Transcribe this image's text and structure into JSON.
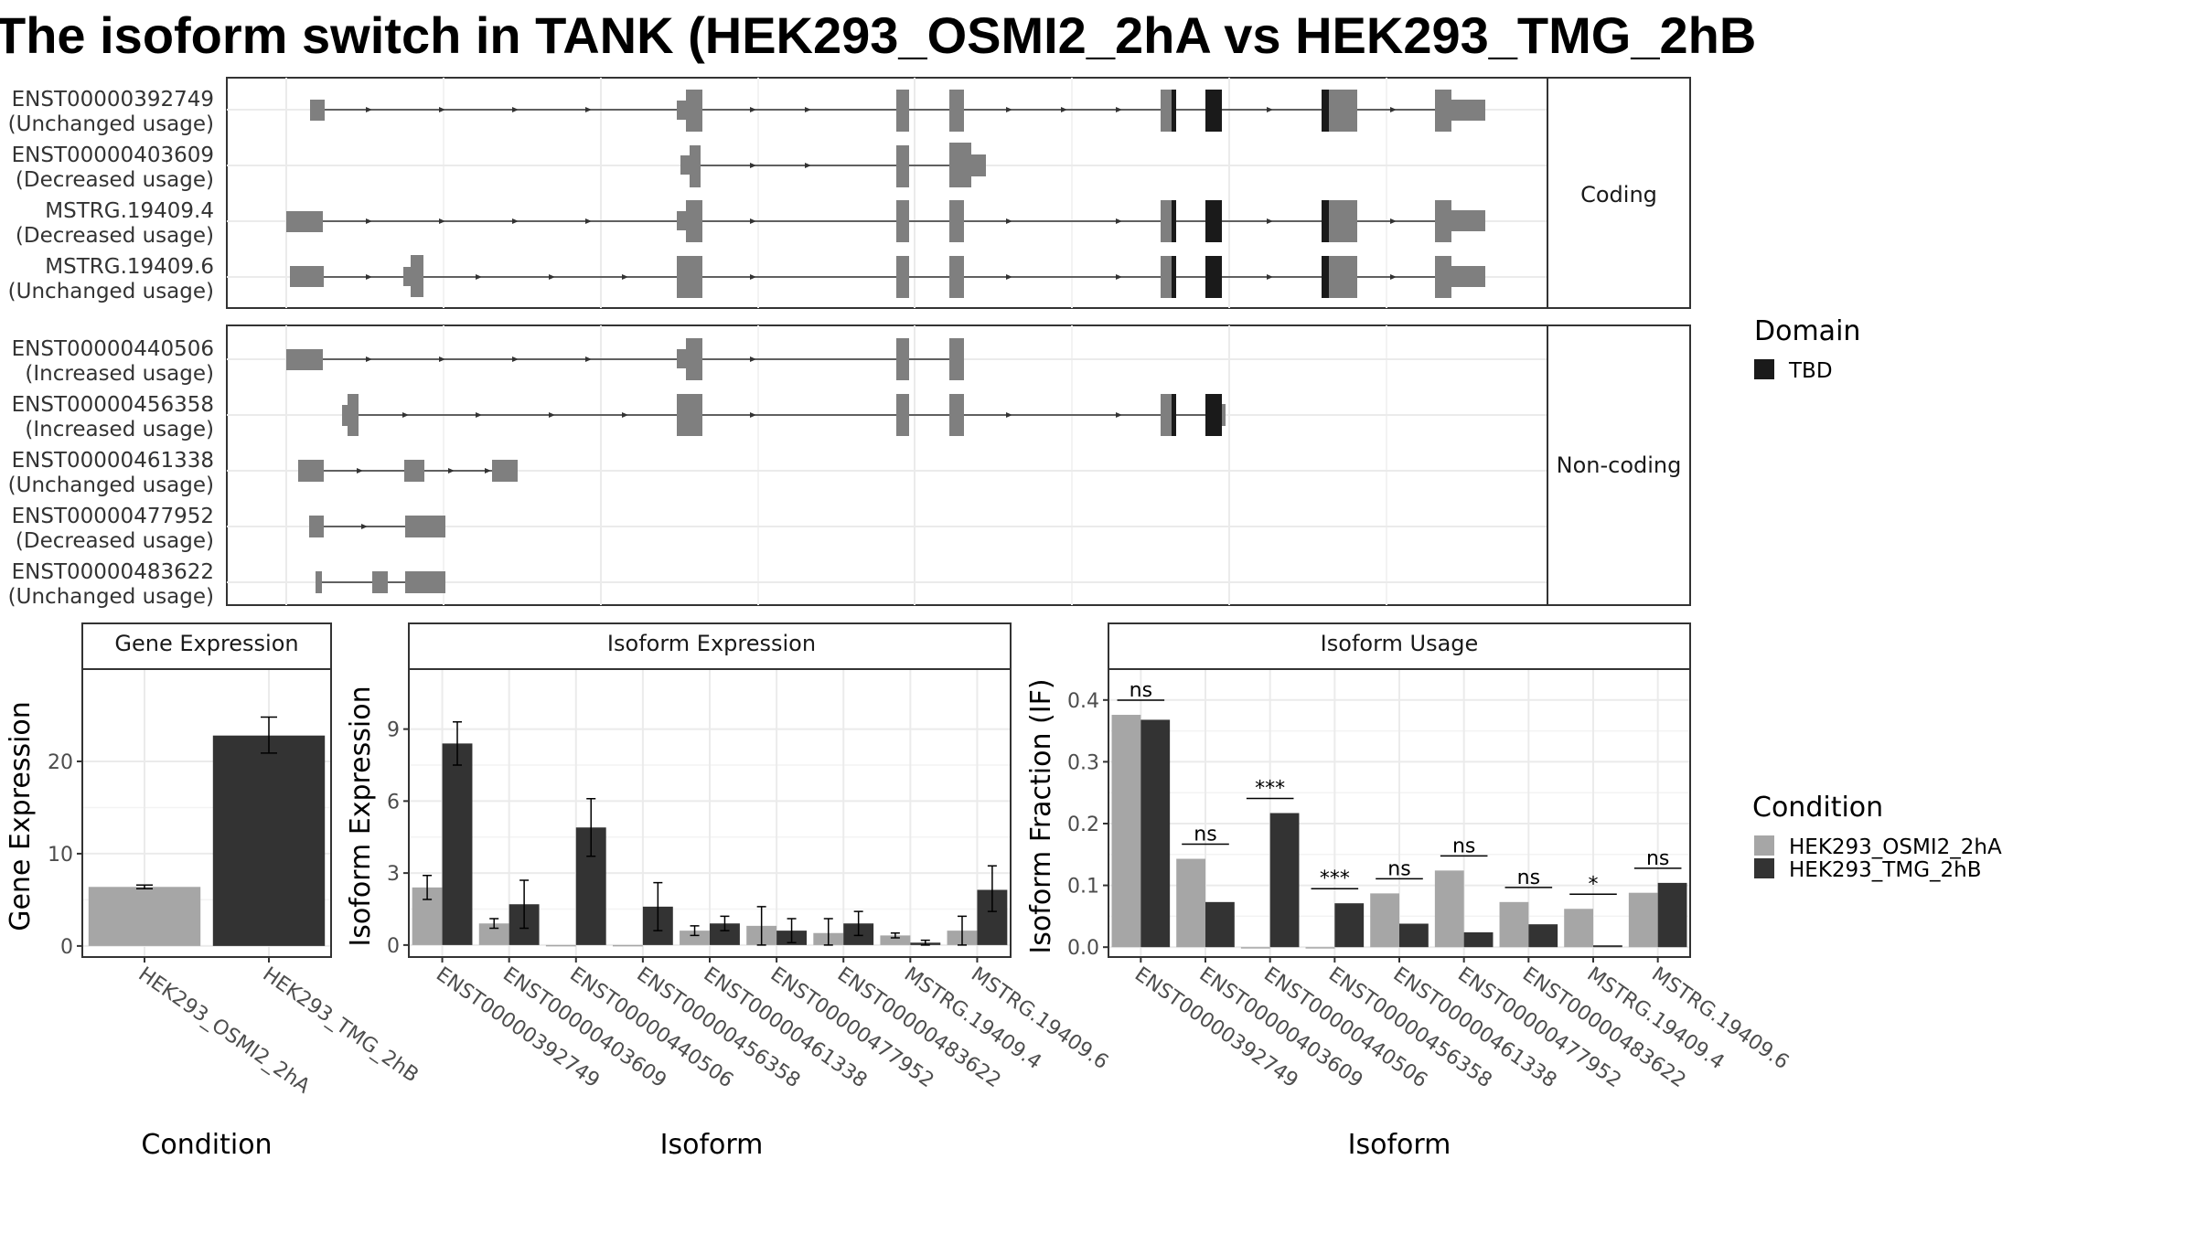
{
  "title": "The isoform switch in TANK (HEK293_OSMI2_2hA vs HEK293_TMG_2hB",
  "colors": {
    "cond1": "#a6a6a6",
    "cond2": "#333333",
    "exon": "#7f7f7f",
    "domain": "#1a1a1a",
    "grid": "#ebebeb"
  },
  "chart_data": [
    {
      "type": "gene-structure",
      "facets": [
        {
          "name": "Coding",
          "transcripts": [
            {
              "id": "ENST00000392749",
              "usage": "(Unchanged usage)"
            },
            {
              "id": "ENST00000403609",
              "usage": "(Decreased usage)"
            },
            {
              "id": "MSTRG.19409.4",
              "usage": "(Decreased usage)"
            },
            {
              "id": "MSTRG.19409.6",
              "usage": "(Unchanged usage)"
            }
          ]
        },
        {
          "name": "Non-coding",
          "transcripts": [
            {
              "id": "ENST00000440506",
              "usage": "(Increased usage)"
            },
            {
              "id": "ENST00000456358",
              "usage": "(Increased usage)"
            },
            {
              "id": "ENST00000461338",
              "usage": "(Unchanged usage)"
            },
            {
              "id": "ENST00000477952",
              "usage": "(Decreased usage)"
            },
            {
              "id": "ENST00000483622",
              "usage": "(Unchanged usage)"
            }
          ]
        }
      ],
      "legend": {
        "title": "Domain",
        "entries": [
          "TBD"
        ]
      }
    },
    {
      "type": "bar",
      "title": "Gene Expression",
      "xlabel": "Condition",
      "ylabel": "Gene Expression",
      "categories": [
        "HEK293_OSMI2_2hA",
        "HEK293_TMG_2hB"
      ],
      "values": [
        6.4,
        22.8
      ],
      "err_low": [
        6.2,
        20.9
      ],
      "err_high": [
        6.6,
        24.8
      ],
      "ylim": [
        -1.2,
        30
      ],
      "yticks": [
        0,
        10,
        20
      ]
    },
    {
      "type": "bar",
      "title": "Isoform Expression",
      "xlabel": "Isoform",
      "ylabel": "Isoform Expression",
      "categories": [
        "ENST00000392749",
        "ENST00000403609",
        "ENST00000440506",
        "ENST00000456358",
        "ENST00000461338",
        "ENST00000477952",
        "ENST00000483622",
        "MSTRG.19409.4",
        "MSTRG.19409.6"
      ],
      "series": [
        {
          "name": "HEK293_OSMI2_2hA",
          "values": [
            2.4,
            0.9,
            0.0,
            0.0,
            0.6,
            0.8,
            0.5,
            0.4,
            0.6
          ],
          "err_low": [
            1.9,
            0.7,
            0.0,
            0.0,
            0.4,
            0.0,
            0.0,
            0.3,
            0.0
          ],
          "err_high": [
            2.9,
            1.1,
            0.0,
            0.0,
            0.8,
            1.6,
            1.1,
            0.5,
            1.2
          ]
        },
        {
          "name": "HEK293_TMG_2hB",
          "values": [
            8.4,
            1.7,
            4.9,
            1.6,
            0.9,
            0.6,
            0.9,
            0.1,
            2.3
          ],
          "err_low": [
            7.5,
            0.7,
            3.7,
            0.6,
            0.6,
            0.1,
            0.4,
            0.0,
            1.4
          ],
          "err_high": [
            9.3,
            2.7,
            6.1,
            2.6,
            1.2,
            1.1,
            1.4,
            0.2,
            3.3
          ]
        }
      ],
      "ylim": [
        -0.5,
        11.5
      ],
      "yticks": [
        0,
        3,
        6,
        9
      ]
    },
    {
      "type": "bar",
      "title": "Isoform Usage",
      "xlabel": "Isoform",
      "ylabel": "Isoform Fraction (IF)",
      "categories": [
        "ENST00000392749",
        "ENST00000403609",
        "ENST00000440506",
        "ENST00000456358",
        "ENST00000461338",
        "ENST00000477952",
        "ENST00000483622",
        "MSTRG.19409.4",
        "MSTRG.19409.6"
      ],
      "series": [
        {
          "name": "HEK293_OSMI2_2hA",
          "values": [
            0.376,
            0.143,
            0.0,
            0.0,
            0.087,
            0.124,
            0.073,
            0.062,
            0.088
          ]
        },
        {
          "name": "HEK293_TMG_2hB",
          "values": [
            0.368,
            0.073,
            0.217,
            0.071,
            0.038,
            0.024,
            0.037,
            0.003,
            0.104
          ]
        }
      ],
      "significance": [
        "ns",
        "ns",
        "***",
        "***",
        "ns",
        "ns",
        "ns",
        "*",
        "ns"
      ],
      "ylim": [
        -0.016,
        0.45
      ],
      "yticks": [
        0.0,
        0.1,
        0.2,
        0.3,
        0.4
      ],
      "legend": {
        "title": "Condition",
        "entries": [
          "HEK293_OSMI2_2hA",
          "HEK293_TMG_2hB"
        ]
      }
    }
  ]
}
